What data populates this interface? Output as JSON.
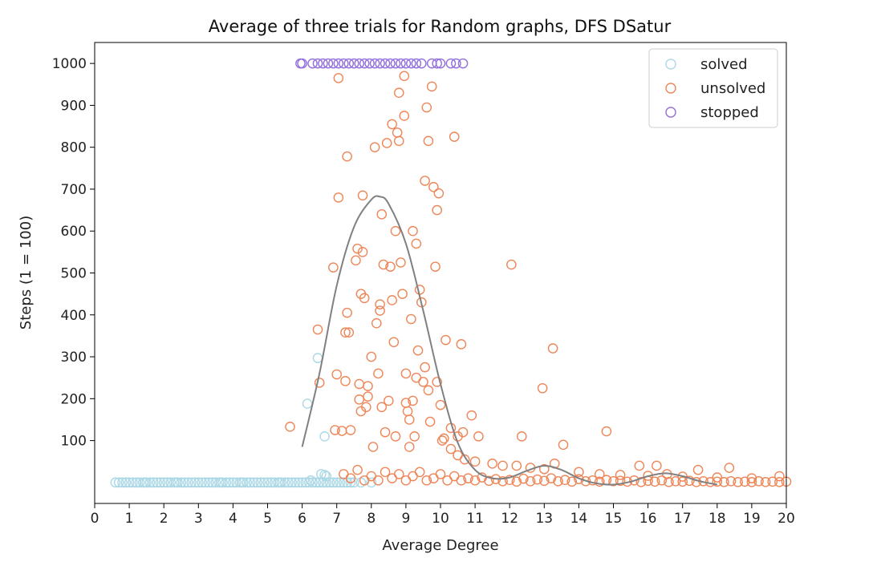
{
  "chart_data": {
    "type": "scatter",
    "title": "Average of three trials for Random graphs, DFS DSatur",
    "xlabel": "Average Degree",
    "ylabel": "Steps (1 = 100)",
    "xlim": [
      0,
      20
    ],
    "ylim": [
      -50,
      1050
    ],
    "xticks": [
      0,
      1,
      2,
      3,
      4,
      5,
      6,
      7,
      8,
      9,
      10,
      11,
      12,
      13,
      14,
      15,
      16,
      17,
      18,
      19,
      20
    ],
    "yticks": [
      100,
      200,
      300,
      400,
      500,
      600,
      700,
      800,
      900,
      1000
    ],
    "grid": false,
    "legend_position": "top-right",
    "series": [
      {
        "name": "solved",
        "color": "#add8e6",
        "marker": "open-circle",
        "points": [
          [
            0.6,
            0
          ],
          [
            0.7,
            0
          ],
          [
            0.8,
            0
          ],
          [
            0.9,
            0
          ],
          [
            1.0,
            0
          ],
          [
            1.1,
            0
          ],
          [
            1.2,
            0
          ],
          [
            1.3,
            0
          ],
          [
            1.4,
            0
          ],
          [
            1.5,
            0
          ],
          [
            1.6,
            0
          ],
          [
            1.7,
            0
          ],
          [
            1.8,
            0
          ],
          [
            1.9,
            0
          ],
          [
            2.0,
            0
          ],
          [
            2.1,
            0
          ],
          [
            2.2,
            0
          ],
          [
            2.3,
            0
          ],
          [
            2.4,
            0
          ],
          [
            2.5,
            0
          ],
          [
            2.6,
            0
          ],
          [
            2.7,
            0
          ],
          [
            2.8,
            0
          ],
          [
            2.9,
            0
          ],
          [
            3.0,
            0
          ],
          [
            3.1,
            0
          ],
          [
            3.2,
            0
          ],
          [
            3.3,
            0
          ],
          [
            3.4,
            0
          ],
          [
            3.5,
            0
          ],
          [
            3.6,
            0
          ],
          [
            3.7,
            0
          ],
          [
            3.8,
            0
          ],
          [
            3.9,
            0
          ],
          [
            4.0,
            0
          ],
          [
            4.1,
            0
          ],
          [
            4.2,
            0
          ],
          [
            4.3,
            0
          ],
          [
            4.4,
            0
          ],
          [
            4.5,
            0
          ],
          [
            4.6,
            0
          ],
          [
            4.7,
            0
          ],
          [
            4.8,
            0
          ],
          [
            4.9,
            0
          ],
          [
            5.0,
            0
          ],
          [
            5.1,
            0
          ],
          [
            5.2,
            0
          ],
          [
            5.3,
            0
          ],
          [
            5.4,
            0
          ],
          [
            5.5,
            0
          ],
          [
            5.6,
            0
          ],
          [
            5.7,
            0
          ],
          [
            5.8,
            0
          ],
          [
            5.9,
            0
          ],
          [
            6.0,
            0
          ],
          [
            6.1,
            0
          ],
          [
            6.2,
            0
          ],
          [
            6.3,
            0
          ],
          [
            6.4,
            0
          ],
          [
            6.5,
            0
          ],
          [
            6.6,
            0
          ],
          [
            6.7,
            0
          ],
          [
            6.8,
            0
          ],
          [
            6.9,
            0
          ],
          [
            7.0,
            0
          ],
          [
            7.1,
            0
          ],
          [
            7.2,
            0
          ],
          [
            7.3,
            0
          ],
          [
            7.4,
            0
          ],
          [
            7.5,
            0
          ],
          [
            6.55,
            20
          ],
          [
            6.65,
            18
          ],
          [
            6.7,
            15
          ],
          [
            6.15,
            188
          ],
          [
            6.45,
            297
          ],
          [
            6.65,
            110
          ],
          [
            7.7,
            0
          ],
          [
            8.0,
            0
          ],
          [
            0.9,
            0
          ],
          [
            1.45,
            0
          ],
          [
            2.35,
            0
          ],
          [
            3.65,
            0
          ],
          [
            4.25,
            0
          ],
          [
            5.35,
            0
          ],
          [
            6.25,
            5
          ]
        ]
      },
      {
        "name": "unsolved",
        "color": "#ee8658",
        "marker": "open-circle",
        "points": [
          [
            5.65,
            133
          ],
          [
            6.45,
            365
          ],
          [
            6.5,
            238
          ],
          [
            6.9,
            513
          ],
          [
            6.95,
            125
          ],
          [
            7.0,
            258
          ],
          [
            7.05,
            680
          ],
          [
            7.05,
            965
          ],
          [
            7.15,
            123
          ],
          [
            7.25,
            242
          ],
          [
            7.25,
            358
          ],
          [
            7.3,
            405
          ],
          [
            7.3,
            778
          ],
          [
            7.35,
            358
          ],
          [
            7.4,
            125
          ],
          [
            7.55,
            530
          ],
          [
            7.6,
            558
          ],
          [
            7.65,
            198
          ],
          [
            7.65,
            235
          ],
          [
            7.7,
            170
          ],
          [
            7.7,
            450
          ],
          [
            7.75,
            550
          ],
          [
            7.75,
            685
          ],
          [
            7.8,
            440
          ],
          [
            7.85,
            180
          ],
          [
            7.9,
            205
          ],
          [
            7.9,
            230
          ],
          [
            8.0,
            300
          ],
          [
            8.05,
            85
          ],
          [
            8.1,
            800
          ],
          [
            8.15,
            380
          ],
          [
            8.2,
            260
          ],
          [
            8.25,
            410
          ],
          [
            8.25,
            425
          ],
          [
            8.3,
            640
          ],
          [
            8.35,
            520
          ],
          [
            8.4,
            120
          ],
          [
            8.45,
            810
          ],
          [
            8.5,
            195
          ],
          [
            8.55,
            515
          ],
          [
            8.6,
            855
          ],
          [
            8.65,
            335
          ],
          [
            8.7,
            600
          ],
          [
            8.75,
            835
          ],
          [
            8.8,
            930
          ],
          [
            8.85,
            525
          ],
          [
            8.9,
            450
          ],
          [
            8.95,
            875
          ],
          [
            9.0,
            190
          ],
          [
            9.05,
            170
          ],
          [
            9.1,
            150
          ],
          [
            9.15,
            390
          ],
          [
            9.2,
            195
          ],
          [
            9.25,
            110
          ],
          [
            9.3,
            570
          ],
          [
            9.35,
            315
          ],
          [
            9.4,
            460
          ],
          [
            9.45,
            430
          ],
          [
            9.5,
            240
          ],
          [
            9.55,
            720
          ],
          [
            9.6,
            895
          ],
          [
            9.65,
            220
          ],
          [
            9.7,
            145
          ],
          [
            9.75,
            945
          ],
          [
            9.8,
            705
          ],
          [
            9.85,
            515
          ],
          [
            9.9,
            650
          ],
          [
            9.95,
            690
          ],
          [
            10.05,
            100
          ],
          [
            10.1,
            105
          ],
          [
            10.15,
            340
          ],
          [
            10.3,
            130
          ],
          [
            10.4,
            825
          ],
          [
            10.5,
            110
          ],
          [
            10.6,
            330
          ],
          [
            10.65,
            120
          ],
          [
            10.9,
            160
          ],
          [
            11.1,
            110
          ],
          [
            12.05,
            520
          ],
          [
            12.35,
            110
          ],
          [
            12.95,
            225
          ],
          [
            13.25,
            320
          ],
          [
            13.55,
            90
          ],
          [
            14.8,
            122
          ],
          [
            15.75,
            40
          ],
          [
            16.25,
            40
          ],
          [
            16.55,
            20
          ],
          [
            17.45,
            30
          ],
          [
            18.35,
            35
          ],
          [
            8.95,
            970
          ],
          [
            8.8,
            815
          ],
          [
            9.65,
            815
          ],
          [
            9.2,
            600
          ],
          [
            9.0,
            260
          ],
          [
            8.6,
            435
          ],
          [
            8.3,
            180
          ],
          [
            8.7,
            110
          ],
          [
            9.1,
            85
          ],
          [
            9.3,
            250
          ],
          [
            9.55,
            275
          ],
          [
            9.9,
            240
          ],
          [
            10.0,
            185
          ],
          [
            10.3,
            80
          ],
          [
            10.5,
            65
          ],
          [
            10.7,
            55
          ],
          [
            11.0,
            50
          ],
          [
            11.5,
            45
          ],
          [
            11.8,
            40
          ],
          [
            12.2,
            40
          ],
          [
            12.6,
            35
          ],
          [
            13.0,
            32
          ],
          [
            13.3,
            45
          ],
          [
            14.0,
            25
          ],
          [
            14.6,
            20
          ],
          [
            15.2,
            18
          ],
          [
            16.0,
            16
          ],
          [
            17.0,
            14
          ],
          [
            18.0,
            12
          ],
          [
            19.0,
            10
          ],
          [
            19.8,
            15
          ],
          [
            7.2,
            20
          ],
          [
            7.4,
            10
          ],
          [
            7.6,
            30
          ],
          [
            7.8,
            5
          ],
          [
            8.0,
            15
          ],
          [
            8.2,
            5
          ],
          [
            8.4,
            25
          ],
          [
            8.6,
            10
          ],
          [
            8.8,
            20
          ],
          [
            9.0,
            5
          ],
          [
            9.2,
            15
          ],
          [
            9.4,
            25
          ],
          [
            9.6,
            5
          ],
          [
            9.8,
            10
          ],
          [
            10.0,
            20
          ],
          [
            10.2,
            5
          ],
          [
            10.4,
            15
          ],
          [
            10.6,
            5
          ],
          [
            10.8,
            10
          ],
          [
            11.0,
            5
          ],
          [
            11.2,
            12
          ],
          [
            11.4,
            4
          ],
          [
            11.6,
            8
          ],
          [
            11.8,
            3
          ],
          [
            12.0,
            6
          ],
          [
            12.2,
            2
          ],
          [
            12.4,
            9
          ],
          [
            12.6,
            3
          ],
          [
            12.8,
            7
          ],
          [
            13.0,
            4
          ],
          [
            13.2,
            10
          ],
          [
            13.4,
            3
          ],
          [
            13.6,
            6
          ],
          [
            13.8,
            2
          ],
          [
            14.0,
            8
          ],
          [
            14.2,
            3
          ],
          [
            14.4,
            5
          ],
          [
            14.6,
            2
          ],
          [
            14.8,
            6
          ],
          [
            15.0,
            3
          ],
          [
            15.2,
            4
          ],
          [
            15.4,
            2
          ],
          [
            15.6,
            5
          ],
          [
            15.8,
            1
          ],
          [
            16.0,
            4
          ],
          [
            16.2,
            2
          ],
          [
            16.4,
            5
          ],
          [
            16.6,
            1
          ],
          [
            16.8,
            3
          ],
          [
            17.0,
            2
          ],
          [
            17.2,
            4
          ],
          [
            17.4,
            1
          ],
          [
            17.6,
            3
          ],
          [
            17.8,
            1
          ],
          [
            18.0,
            2
          ],
          [
            18.2,
            1
          ],
          [
            18.4,
            3
          ],
          [
            18.6,
            1
          ],
          [
            18.8,
            2
          ],
          [
            19.0,
            1
          ],
          [
            19.2,
            3
          ],
          [
            19.4,
            1
          ],
          [
            19.6,
            2
          ],
          [
            19.8,
            1
          ],
          [
            20.0,
            2
          ]
        ]
      },
      {
        "name": "stopped",
        "color": "#9370db",
        "marker": "open-circle",
        "points": [
          [
            5.95,
            1000
          ],
          [
            6.0,
            1000
          ],
          [
            6.3,
            1000
          ],
          [
            6.45,
            1000
          ],
          [
            6.6,
            1000
          ],
          [
            6.75,
            1000
          ],
          [
            6.9,
            1000
          ],
          [
            7.05,
            1000
          ],
          [
            7.2,
            1000
          ],
          [
            7.35,
            1000
          ],
          [
            7.5,
            1000
          ],
          [
            7.65,
            1000
          ],
          [
            7.8,
            1000
          ],
          [
            7.95,
            1000
          ],
          [
            8.1,
            1000
          ],
          [
            8.25,
            1000
          ],
          [
            8.4,
            1000
          ],
          [
            8.55,
            1000
          ],
          [
            8.7,
            1000
          ],
          [
            8.85,
            1000
          ],
          [
            9.0,
            1000
          ],
          [
            9.15,
            1000
          ],
          [
            9.3,
            1000
          ],
          [
            9.45,
            1000
          ],
          [
            9.75,
            1000
          ],
          [
            9.9,
            1000
          ],
          [
            10.0,
            1000
          ],
          [
            10.3,
            1000
          ],
          [
            10.45,
            1000
          ],
          [
            10.65,
            1000
          ]
        ]
      }
    ],
    "fit_curve": {
      "color": "#808080",
      "points": [
        [
          6.0,
          85
        ],
        [
          6.5,
          260
        ],
        [
          7.0,
          470
        ],
        [
          7.5,
          610
        ],
        [
          8.0,
          675
        ],
        [
          8.25,
          682
        ],
        [
          8.5,
          665
        ],
        [
          9.0,
          570
        ],
        [
          9.5,
          410
        ],
        [
          10.0,
          235
        ],
        [
          10.5,
          95
        ],
        [
          11.0,
          30
        ],
        [
          11.5,
          10
        ],
        [
          12.0,
          12
        ],
        [
          12.5,
          28
        ],
        [
          13.0,
          40
        ],
        [
          13.5,
          30
        ],
        [
          14.0,
          10
        ],
        [
          14.5,
          -2
        ],
        [
          15.0,
          -5
        ],
        [
          15.5,
          2
        ],
        [
          16.0,
          15
        ],
        [
          16.5,
          22
        ],
        [
          17.0,
          15
        ],
        [
          17.5,
          3
        ],
        [
          18.0,
          -5
        ]
      ]
    }
  }
}
